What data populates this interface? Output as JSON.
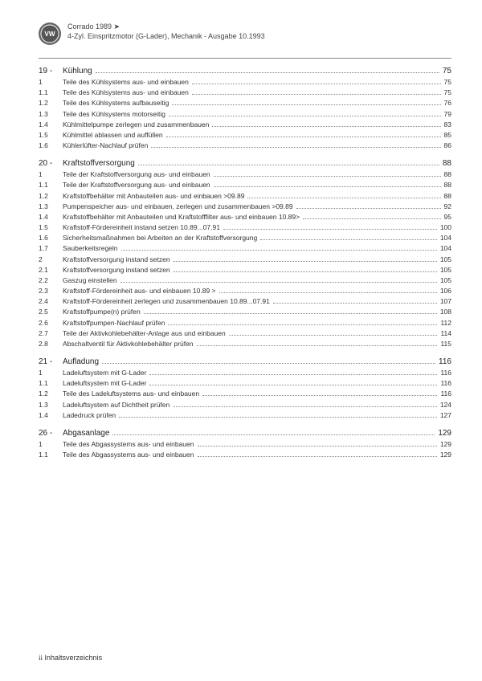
{
  "header": {
    "line1": "Corrado 1989 ➤",
    "line2": "4-Zyl. Einspritzmotor (G-Lader), Mechanik - Ausgabe 10.1993"
  },
  "chapters": [
    {
      "num": "19 -",
      "title": "Kühlung",
      "page": "75",
      "entries": [
        {
          "num": "1",
          "title": "Teile des Kühlsystems aus- und einbauen",
          "page": "75"
        },
        {
          "num": "1.1",
          "title": "Teile des Kühlsystems aus- und einbauen",
          "page": "75"
        },
        {
          "num": "1.2",
          "title": "Teile des Kühlsystems aufbauseitig",
          "page": "76"
        },
        {
          "num": "1.3",
          "title": "Teile des Kühlsystems motorseitig",
          "page": "79"
        },
        {
          "num": "1.4",
          "title": "Kühlmittelpumpe zerlegen und zusammenbauen",
          "page": "83"
        },
        {
          "num": "1.5",
          "title": "Kühlmittel ablassen und auffüllen",
          "page": "85"
        },
        {
          "num": "1.6",
          "title": "Kühlerlüfter-Nachlauf prüfen",
          "page": "86"
        }
      ]
    },
    {
      "num": "20 -",
      "title": "Kraftstoffversorgung",
      "page": "88",
      "entries": [
        {
          "num": "1",
          "title": "Teile der Kraftstoffversorgung aus- und einbauen",
          "page": "88"
        },
        {
          "num": "1.1",
          "title": "Teile der Kraftstoffversorgung aus- und einbauen",
          "page": "88"
        },
        {
          "num": "1.2",
          "title": "Kraftstoffbehälter mit Anbauteilen aus- und einbauen >09.89",
          "page": "88"
        },
        {
          "num": "1.3",
          "title": "Pumpenspeicher aus- und einbauen, zerlegen und zusammenbauen >09.89",
          "page": "92"
        },
        {
          "num": "1.4",
          "title": "Kraftstoffbehälter mit Anbauteilen und Kraftstofffilter aus- und einbauen 10.89>",
          "page": "95"
        },
        {
          "num": "1.5",
          "title": "Kraftstoff-Fördereinheit instand setzen 10.89...07.91",
          "page": "100"
        },
        {
          "num": "1.6",
          "title": "Sicherheitsmaßnahmen bei Arbeiten an der Kraftstoffversorgung",
          "page": "104"
        },
        {
          "num": "1.7",
          "title": "Sauberkeitsregeln",
          "page": "104"
        },
        {
          "num": "2",
          "title": "Kraftstoffversorgung instand setzen",
          "page": "105"
        },
        {
          "num": "2.1",
          "title": "Kraftstoffversorgung instand setzen",
          "page": "105"
        },
        {
          "num": "2.2",
          "title": "Gaszug einstellen",
          "page": "105"
        },
        {
          "num": "2.3",
          "title": "Kraftstoff-Fördereinheit aus- und einbauen 10.89 >",
          "page": "106"
        },
        {
          "num": "2.4",
          "title": "Kraftstoff-Fördereinheit zerlegen und zusammenbauen 10.89...07.91",
          "page": "107"
        },
        {
          "num": "2.5",
          "title": "Kraftstoffpumpe(n) prüfen",
          "page": "108"
        },
        {
          "num": "2.6",
          "title": "Kraftstoffpumpen-Nachlauf prüfen",
          "page": "112"
        },
        {
          "num": "2.7",
          "title": "Teile der Aktivkohlebehälter-Anlage aus und einbauen",
          "page": "114"
        },
        {
          "num": "2.8",
          "title": "Abschaltventil für Aktivkohlebehälter prüfen",
          "page": "115"
        }
      ]
    },
    {
      "num": "21 -",
      "title": "Aufladung",
      "page": "116",
      "entries": [
        {
          "num": "1",
          "title": "Ladeluftsystem mit G-Lader",
          "page": "116"
        },
        {
          "num": "1.1",
          "title": "Ladeluftsystem mit G-Lader",
          "page": "116"
        },
        {
          "num": "1.2",
          "title": "Teile des Ladeluftsystems aus- und einbauen",
          "page": "116"
        },
        {
          "num": "1.3",
          "title": "Ladeluftsystem auf Dichtheit prüfen",
          "page": "124"
        },
        {
          "num": "1.4",
          "title": "Ladedruck prüfen",
          "page": "127"
        }
      ]
    },
    {
      "num": "26 -",
      "title": "Abgasanlage",
      "page": "129",
      "entries": [
        {
          "num": "1",
          "title": "Teile des Abgassystems aus- und einbauen",
          "page": "129"
        },
        {
          "num": "1.1",
          "title": "Teile des Abgassystems aus- und einbauen",
          "page": "129"
        }
      ]
    }
  ],
  "footer": {
    "pagemark": "ii",
    "label": "Inhaltsverzeichnis"
  }
}
